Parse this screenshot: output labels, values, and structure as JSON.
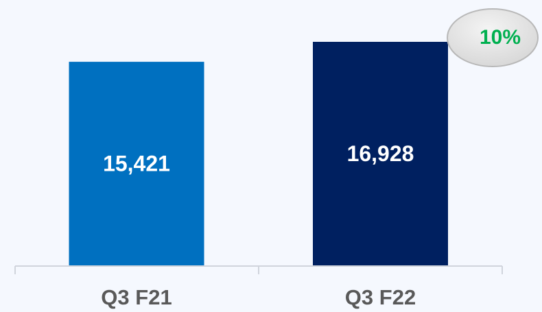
{
  "chart_data": {
    "type": "bar",
    "categories": [
      "Q3 F21",
      "Q3 F22"
    ],
    "values": [
      15421,
      16928
    ],
    "value_labels": [
      "15,421",
      "16,928"
    ],
    "colors": [
      "#0070c0",
      "#002060"
    ],
    "annotation": "10%"
  }
}
